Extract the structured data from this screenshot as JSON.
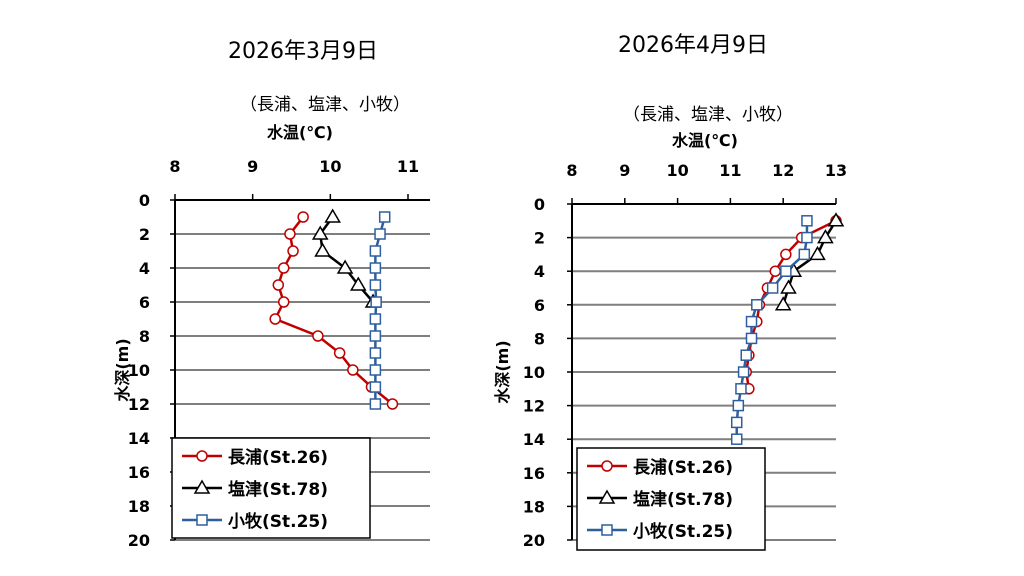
{
  "chart_data": [
    {
      "type": "line",
      "date_title": "2026年3月9日",
      "subtitle": "（長浦、塩津、小牧）",
      "xlabel": "水温(℃)",
      "ylabel": "水深(m)",
      "xlim": [
        8,
        11
      ],
      "xticks": [
        8,
        9,
        10,
        11
      ],
      "ylim": [
        0,
        20
      ],
      "yticks": [
        0,
        2,
        4,
        6,
        8,
        10,
        12,
        14,
        16,
        18,
        20
      ],
      "legend_position": "bottom-left",
      "grid": "horizontal",
      "series": [
        {
          "name": "長浦(St.26)",
          "color": "#c00000",
          "marker": "circle",
          "x": [
            9.65,
            9.48,
            9.52,
            9.4,
            9.33,
            9.4,
            9.29,
            9.84,
            10.12,
            10.29,
            10.53,
            10.8
          ],
          "y": [
            1,
            2,
            3,
            4,
            5,
            6,
            7,
            8,
            9,
            10,
            11,
            12
          ]
        },
        {
          "name": "塩津(St.78)",
          "color": "#000000",
          "marker": "triangle",
          "x": [
            10.03,
            9.87,
            9.9,
            10.19,
            10.36,
            10.55
          ],
          "y": [
            1,
            2,
            3,
            4,
            5,
            6
          ]
        },
        {
          "name": "小牧(St.25)",
          "color": "#2e5e9e",
          "marker": "square",
          "x": [
            10.7,
            10.64,
            10.58,
            10.58,
            10.58,
            10.59,
            10.58,
            10.58,
            10.58,
            10.58,
            10.58,
            10.58
          ],
          "y": [
            1,
            2,
            3,
            4,
            5,
            6,
            7,
            8,
            9,
            10,
            11,
            12
          ]
        }
      ]
    },
    {
      "type": "line",
      "date_title": "2026年4月9日",
      "subtitle": "（長浦、塩津、小牧）",
      "xlabel": "水温(℃)",
      "ylabel": "水深(m)",
      "xlim": [
        8,
        13
      ],
      "xticks": [
        8,
        9,
        10,
        11,
        12,
        13
      ],
      "ylim": [
        0,
        20
      ],
      "yticks": [
        0,
        2,
        4,
        6,
        8,
        10,
        12,
        14,
        16,
        18,
        20
      ],
      "legend_position": "bottom-left",
      "grid": "horizontal",
      "series": [
        {
          "name": "長浦(St.26)",
          "color": "#c00000",
          "marker": "circle",
          "x": [
            13.0,
            12.35,
            12.05,
            11.85,
            11.7,
            11.55,
            11.5,
            11.4,
            11.35,
            11.3,
            11.35
          ],
          "y": [
            1,
            2,
            3,
            4,
            5,
            6,
            7,
            8,
            9,
            10,
            11
          ]
        },
        {
          "name": "塩津(St.78)",
          "color": "#000000",
          "marker": "triangle",
          "x": [
            13.0,
            12.8,
            12.65,
            12.2,
            12.1,
            12.0
          ],
          "y": [
            1,
            2,
            3,
            4,
            5,
            6
          ]
        },
        {
          "name": "小牧(St.25)",
          "color": "#2e5e9e",
          "marker": "square",
          "x": [
            12.45,
            12.45,
            12.4,
            12.05,
            11.8,
            11.5,
            11.4,
            11.4,
            11.3,
            11.25,
            11.2,
            11.15,
            11.12,
            11.12
          ],
          "y": [
            1,
            2,
            3,
            4,
            5,
            6,
            7,
            8,
            9,
            10,
            11,
            12,
            13,
            14
          ]
        }
      ]
    }
  ]
}
